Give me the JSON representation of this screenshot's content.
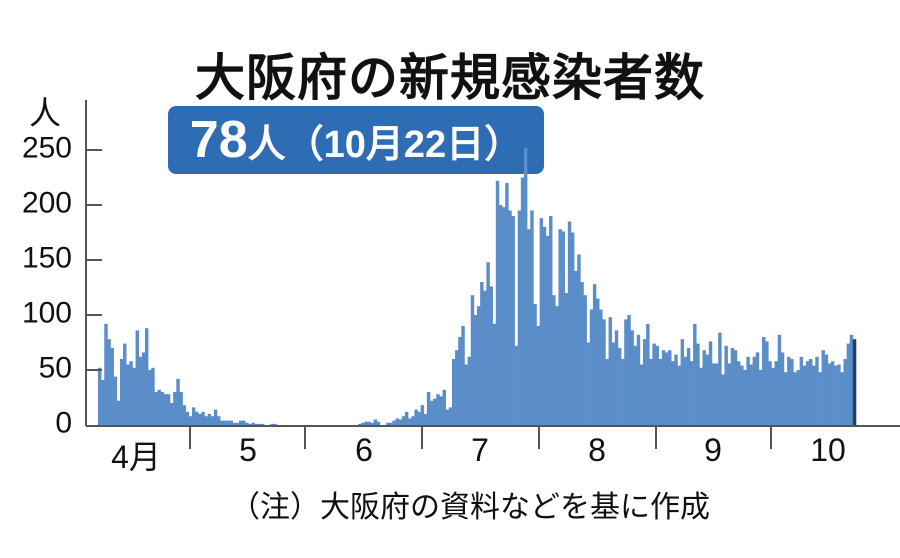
{
  "title": "大阪府の新規感染者数",
  "badge": {
    "value": "78",
    "unit": "人",
    "date": "（10月22日）"
  },
  "y_unit": "人",
  "note": "（注）大阪府の資料などを基に作成",
  "colors": {
    "bar": "#5b8ec9",
    "last_bar": "#1f3f66",
    "badge_bg": "#2e6db4",
    "axis": "#555555"
  },
  "chart_data": {
    "type": "bar",
    "title": "大阪府の新規感染者数",
    "xlabel": "",
    "ylabel": "人",
    "ylim": [
      0,
      260
    ],
    "yticks": [
      0,
      50,
      100,
      150,
      200,
      250
    ],
    "xtick_labels": [
      "4月",
      "5",
      "6",
      "7",
      "8",
      "9",
      "10"
    ],
    "grid": false,
    "date_range": [
      "4/1",
      "10/22"
    ],
    "highlight": {
      "date": "10/22",
      "value": 78
    },
    "values": [
      52,
      41,
      92,
      78,
      70,
      44,
      22,
      60,
      74,
      55,
      58,
      52,
      86,
      62,
      66,
      88,
      50,
      52,
      30,
      32,
      30,
      28,
      28,
      20,
      30,
      42,
      30,
      18,
      12,
      8,
      16,
      12,
      10,
      12,
      8,
      10,
      8,
      14,
      8,
      4,
      4,
      4,
      4,
      2,
      2,
      4,
      4,
      2,
      1,
      2,
      1,
      1,
      1,
      0,
      0,
      1,
      1,
      0,
      0,
      0,
      0,
      0,
      0,
      0,
      0,
      0,
      0,
      0,
      0,
      0,
      0,
      0,
      0,
      0,
      0,
      0,
      0,
      0,
      0,
      0,
      0,
      0,
      0,
      1,
      2,
      3,
      3,
      2,
      5,
      3,
      0,
      0,
      2,
      2,
      4,
      6,
      5,
      8,
      12,
      6,
      8,
      14,
      12,
      18,
      10,
      30,
      22,
      24,
      28,
      26,
      32,
      14,
      16,
      60,
      68,
      80,
      90,
      55,
      62,
      118,
      100,
      108,
      130,
      122,
      148,
      126,
      92,
      222,
      200,
      198,
      220,
      195,
      190,
      72,
      195,
      225,
      252,
      178,
      195,
      110,
      90,
      188,
      180,
      172,
      190,
      118,
      108,
      178,
      176,
      120,
      185,
      175,
      140,
      155,
      130,
      118,
      75,
      105,
      128,
      115,
      105,
      96,
      60,
      98,
      75,
      86,
      70,
      60,
      96,
      100,
      86,
      72,
      82,
      55,
      78,
      92,
      60,
      74,
      72,
      60,
      68,
      66,
      68,
      58,
      64,
      54,
      78,
      62,
      70,
      58,
      92,
      74,
      52,
      68,
      64,
      76,
      56,
      56,
      84,
      46,
      72,
      56,
      70,
      68,
      58,
      54,
      50,
      62,
      55,
      62,
      66,
      50,
      80,
      76,
      58,
      52,
      58,
      82,
      66,
      48,
      62,
      60,
      48,
      50,
      62,
      54,
      58,
      60,
      54,
      62,
      48,
      68,
      64,
      56,
      58,
      54,
      55,
      48,
      60,
      74,
      82,
      78
    ]
  }
}
